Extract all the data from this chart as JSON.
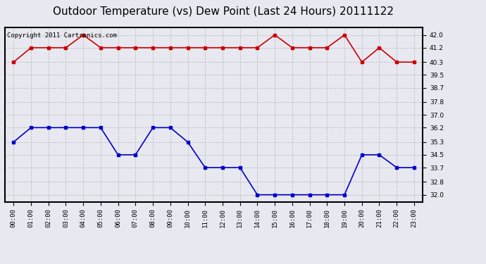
{
  "title": "Outdoor Temperature (vs) Dew Point (Last 24 Hours) 20111122",
  "copyright": "Copyright 2011 Cartronics.com",
  "hours": [
    "00:00",
    "01:00",
    "02:00",
    "03:00",
    "04:00",
    "05:00",
    "06:00",
    "07:00",
    "08:00",
    "09:00",
    "10:00",
    "11:00",
    "12:00",
    "13:00",
    "14:00",
    "15:00",
    "16:00",
    "17:00",
    "18:00",
    "19:00",
    "20:00",
    "21:00",
    "22:00",
    "23:00"
  ],
  "temp": [
    40.3,
    41.2,
    41.2,
    41.2,
    42.0,
    41.2,
    41.2,
    41.2,
    41.2,
    41.2,
    41.2,
    41.2,
    41.2,
    41.2,
    41.2,
    42.0,
    41.2,
    41.2,
    41.2,
    42.0,
    40.3,
    41.2,
    40.3,
    40.3
  ],
  "dew": [
    35.3,
    36.2,
    36.2,
    36.2,
    36.2,
    36.2,
    34.5,
    34.5,
    36.2,
    36.2,
    35.3,
    33.7,
    33.7,
    33.7,
    32.0,
    32.0,
    32.0,
    32.0,
    32.0,
    32.0,
    34.5,
    34.5,
    33.7,
    33.7
  ],
  "temp_color": "#cc0000",
  "dew_color": "#0000cc",
  "bg_color": "#e8e8f0",
  "plot_bg_color": "#e8e8f0",
  "grid_color": "#aaaaaa",
  "yticks": [
    32.0,
    32.8,
    33.7,
    34.5,
    35.3,
    36.2,
    37.0,
    37.8,
    38.7,
    39.5,
    40.3,
    41.2,
    42.0
  ],
  "ylim": [
    31.55,
    42.45
  ],
  "title_fontsize": 11,
  "copyright_fontsize": 6.5,
  "marker": "s",
  "markersize": 3,
  "linewidth": 1.2
}
